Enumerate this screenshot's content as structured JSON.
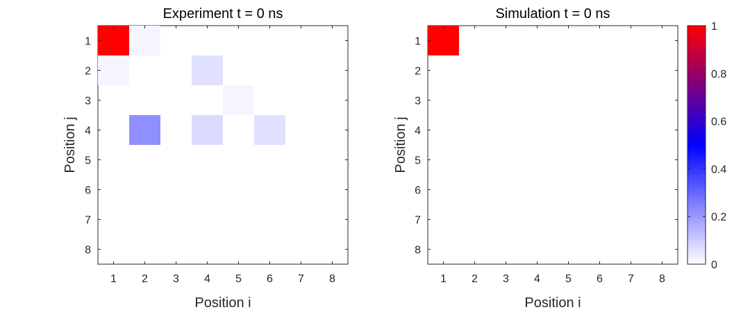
{
  "colors": {
    "background": "#ffffff",
    "axis": "#262626",
    "colormap_stops": [
      "#ffffff",
      "#0000ff",
      "#ff0000"
    ]
  },
  "chart_data": [
    {
      "type": "heatmap",
      "title": "Experiment t = 0 ns",
      "xlabel": "Position i",
      "ylabel": "Position j",
      "x": [
        1,
        2,
        3,
        4,
        5,
        6,
        7,
        8
      ],
      "y": [
        1,
        2,
        3,
        4,
        5,
        6,
        7,
        8
      ],
      "xlim": [
        0.5,
        8.5
      ],
      "ylim": [
        0.5,
        8.5
      ],
      "y_reversed": true,
      "clim": [
        0,
        1
      ],
      "values": [
        [
          1.0,
          0.02,
          0.0,
          0.0,
          0.0,
          0.0,
          0.0,
          0.0
        ],
        [
          0.02,
          0.0,
          0.0,
          0.06,
          0.0,
          0.0,
          0.0,
          0.0
        ],
        [
          0.0,
          0.0,
          0.0,
          0.0,
          0.02,
          0.0,
          0.0,
          0.0
        ],
        [
          0.0,
          0.22,
          0.0,
          0.07,
          0.0,
          0.06,
          0.0,
          0.0
        ],
        [
          0.0,
          0.0,
          0.0,
          0.0,
          0.0,
          0.0,
          0.0,
          0.0
        ],
        [
          0.0,
          0.0,
          0.0,
          0.0,
          0.0,
          0.0,
          0.0,
          0.0
        ],
        [
          0.0,
          0.0,
          0.0,
          0.0,
          0.0,
          0.0,
          0.0,
          0.0
        ],
        [
          0.0,
          0.0,
          0.0,
          0.0,
          0.0,
          0.0,
          0.0,
          0.0
        ]
      ]
    },
    {
      "type": "heatmap",
      "title": "Simulation t = 0 ns",
      "xlabel": "Position i",
      "ylabel": "Position j",
      "x": [
        1,
        2,
        3,
        4,
        5,
        6,
        7,
        8
      ],
      "y": [
        1,
        2,
        3,
        4,
        5,
        6,
        7,
        8
      ],
      "xlim": [
        0.5,
        8.5
      ],
      "ylim": [
        0.5,
        8.5
      ],
      "y_reversed": true,
      "clim": [
        0,
        1
      ],
      "values": [
        [
          1.0,
          0.0,
          0.0,
          0.0,
          0.0,
          0.0,
          0.0,
          0.0
        ],
        [
          0.0,
          0.0,
          0.0,
          0.0,
          0.0,
          0.0,
          0.0,
          0.0
        ],
        [
          0.0,
          0.0,
          0.0,
          0.0,
          0.0,
          0.0,
          0.0,
          0.0
        ],
        [
          0.0,
          0.0,
          0.0,
          0.0,
          0.0,
          0.0,
          0.0,
          0.0
        ],
        [
          0.0,
          0.0,
          0.0,
          0.0,
          0.0,
          0.0,
          0.0,
          0.0
        ],
        [
          0.0,
          0.0,
          0.0,
          0.0,
          0.0,
          0.0,
          0.0,
          0.0
        ],
        [
          0.0,
          0.0,
          0.0,
          0.0,
          0.0,
          0.0,
          0.0,
          0.0
        ],
        [
          0.0,
          0.0,
          0.0,
          0.0,
          0.0,
          0.0,
          0.0,
          0.0
        ]
      ]
    }
  ],
  "colorbar": {
    "range": [
      0,
      1
    ],
    "ticks": [
      0,
      0.2,
      0.4,
      0.6,
      0.8,
      1
    ],
    "tick_labels": [
      "0",
      "0.2",
      "0.4",
      "0.6",
      "0.8",
      "1"
    ],
    "placement": "right"
  }
}
